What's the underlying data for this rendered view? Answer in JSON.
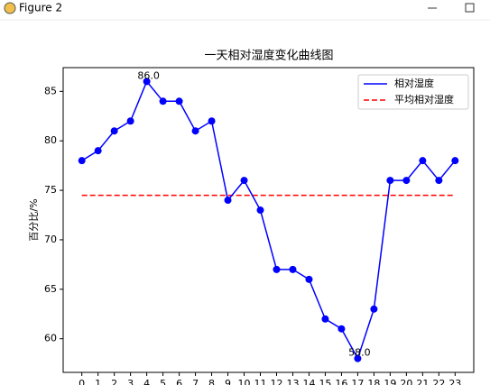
{
  "window": {
    "title": "Figure 2"
  },
  "chart_data": {
    "type": "line",
    "title": "一天相对湿度变化曲线图",
    "y_label": "百分比/%",
    "x": [
      0,
      1,
      2,
      3,
      4,
      5,
      6,
      7,
      8,
      9,
      10,
      11,
      12,
      13,
      14,
      15,
      16,
      17,
      18,
      19,
      20,
      21,
      22,
      23
    ],
    "series": [
      {
        "name": "相对湿度",
        "color": "#0000ff",
        "values": [
          78,
          79,
          81,
          82,
          86,
          84,
          84,
          81,
          82,
          74,
          76,
          73,
          67,
          67,
          66,
          62,
          61,
          58,
          63,
          76,
          76,
          78,
          76,
          78
        ],
        "value_labels": [
          null,
          null,
          null,
          null,
          "86.0",
          null,
          null,
          null,
          null,
          null,
          null,
          null,
          null,
          null,
          null,
          null,
          null,
          "58.0",
          null,
          null,
          null,
          null,
          null,
          null
        ]
      }
    ],
    "mean_line": {
      "name": "平均相对湿度",
      "color": "#ff0000",
      "value": 74.5,
      "linestyle": "dashed"
    },
    "xlim": [
      -1.15,
      24.15
    ],
    "ylim": [
      56.6,
      87.4
    ],
    "xticks": [
      0,
      1,
      2,
      3,
      4,
      5,
      6,
      7,
      8,
      9,
      10,
      11,
      12,
      13,
      14,
      15,
      16,
      17,
      18,
      19,
      20,
      21,
      22,
      23
    ],
    "yticks": [
      60,
      65,
      70,
      75,
      80,
      85
    ],
    "legend": "upper right",
    "grid": false
  }
}
